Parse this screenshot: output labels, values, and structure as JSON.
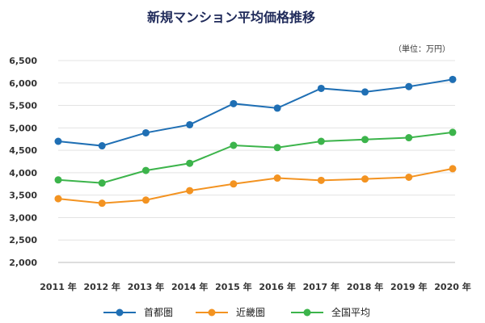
{
  "chart_data": {
    "type": "line",
    "title": "新規マンション平均価格推移",
    "unit_label": "（単位：万円）",
    "categories": [
      "2011 年",
      "2012 年",
      "2013 年",
      "2014 年",
      "2015 年",
      "2016 年",
      "2017 年",
      "2018 年",
      "2019 年",
      "2020 年"
    ],
    "y_ticks": [
      "2,000",
      "2,500",
      "3,000",
      "3,500",
      "4,000",
      "4,500",
      "5,000",
      "5,500",
      "6,000",
      "6,500"
    ],
    "ylim": [
      2000,
      6500
    ],
    "grid": true,
    "legend_position": "bottom",
    "series": [
      {
        "name": "首都圏",
        "color": "#1f6fb4",
        "values": [
          4700,
          4600,
          4890,
          5070,
          5540,
          5440,
          5880,
          5800,
          5920,
          6080
        ]
      },
      {
        "name": "近畿圏",
        "color": "#f39321",
        "values": [
          3420,
          3320,
          3390,
          3600,
          3750,
          3880,
          3830,
          3860,
          3900,
          4090
        ]
      },
      {
        "name": "全国平均",
        "color": "#3cb44b",
        "values": [
          3840,
          3770,
          4050,
          4210,
          4610,
          4560,
          4700,
          4740,
          4780,
          4900
        ]
      }
    ]
  }
}
